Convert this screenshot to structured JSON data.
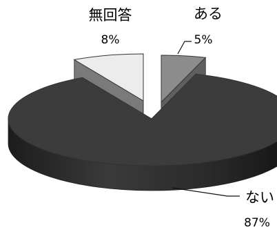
{
  "chart_data": {
    "type": "pie",
    "style": "3d-exploded",
    "slices": [
      {
        "label": "ある",
        "value": 5,
        "display": "5%",
        "top_color": "#8c8c8c",
        "side_color": "#5f5f5f"
      },
      {
        "label": "ない",
        "value": 87,
        "display": "87%",
        "top_color": "#3c3c3c",
        "side_color": "#262626"
      },
      {
        "label": "無回答",
        "value": 8,
        "display": "8%",
        "top_color": "#ececec",
        "side_color": "#7a7a7a"
      }
    ],
    "title": "",
    "legend": "none"
  }
}
